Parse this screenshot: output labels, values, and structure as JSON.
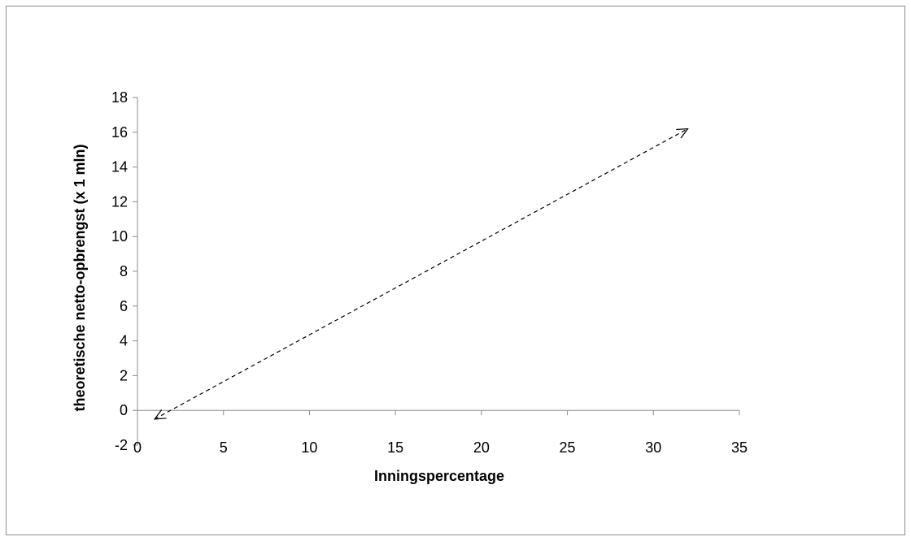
{
  "chart_data": {
    "type": "line",
    "title": "",
    "xlabel": "Inningspercentage",
    "ylabel": "theoretische netto-opbrengst (x 1 mln)",
    "xlim": [
      0,
      35
    ],
    "ylim": [
      -2,
      18
    ],
    "x_ticks": [
      0,
      5,
      10,
      15,
      20,
      25,
      30,
      35
    ],
    "y_ticks": [
      -2,
      0,
      2,
      4,
      6,
      8,
      10,
      12,
      14,
      16,
      18
    ],
    "grid": false,
    "legend": "none",
    "series": [
      {
        "x": [
          1,
          32
        ],
        "y": [
          -0.5,
          16.2
        ],
        "line_style": "dashed",
        "arrowheads": "both",
        "color": "#000000"
      }
    ],
    "colors": {
      "axis": "#8c8c8c",
      "frame": "#8c8c8c",
      "series": "#000000"
    }
  }
}
